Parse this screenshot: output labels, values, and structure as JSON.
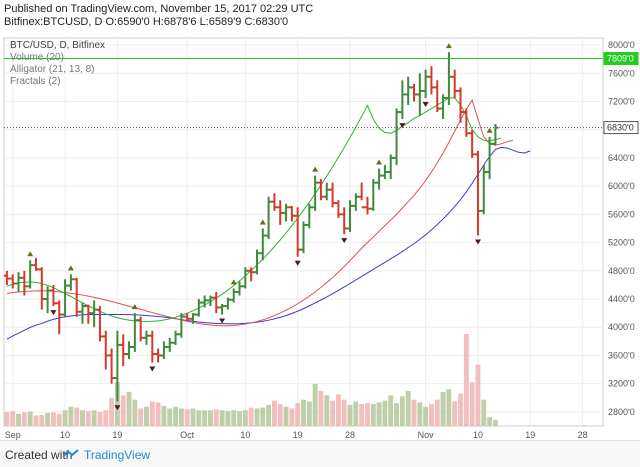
{
  "header": {
    "published": "Published on TradingView.com, November 15, 2017 02:29 UTC",
    "ohlc": "Bitfinex:BTCUSD, D O:6590'0 H:6878'6 L:6589'9 C:6830'0"
  },
  "footer": {
    "created": "Created with",
    "brand": "TradingView"
  },
  "chart_data": {
    "type": "ohlc",
    "legend": [
      "BTC/USD, D, Bitfinex",
      "Volume (20)",
      "Alligator (21, 13, 8)",
      "Fractals (2)"
    ],
    "y_axis": {
      "min": 2600,
      "max": 8100,
      "ticks": [
        2800,
        3200,
        3600,
        4000,
        4400,
        4800,
        5200,
        5600,
        6000,
        6400,
        6800,
        7200,
        7600,
        8000
      ],
      "labels": [
        "2800'0",
        "3200'0",
        "3600'0",
        "4000'0",
        "4400'0",
        "4800'0",
        "5200'0",
        "5600'0",
        "6000'0",
        "6400'0",
        "6800'0",
        "7200'0",
        "7600'0",
        "8000'0"
      ]
    },
    "x_axis": {
      "ticks": [
        1,
        10,
        19,
        31,
        41,
        50,
        59,
        72,
        81,
        90,
        99
      ],
      "labels": [
        "Sep",
        "10",
        "19",
        "Oct",
        "10",
        "19",
        "28",
        "Nov",
        "10",
        "19",
        "28"
      ]
    },
    "price_labels": [
      {
        "value": 7809,
        "label": "7809'0",
        "color": "#22cc22"
      },
      {
        "value": 6830,
        "label": "6830'0",
        "color": "#555555"
      }
    ],
    "bars": [
      [
        4730,
        4800,
        4600,
        4690
      ],
      [
        4690,
        4750,
        4550,
        4620
      ],
      [
        4620,
        4780,
        4500,
        4700
      ],
      [
        4700,
        4800,
        4450,
        4580
      ],
      [
        4580,
        4950,
        4550,
        4880
      ],
      [
        4880,
        4980,
        4800,
        4820
      ],
      [
        4820,
        4850,
        4250,
        4400
      ],
      [
        4400,
        4580,
        4200,
        4520
      ],
      [
        4520,
        4600,
        4300,
        4340
      ],
      [
        4340,
        4380,
        3900,
        4180
      ],
      [
        4180,
        4680,
        4150,
        4590
      ],
      [
        4590,
        4750,
        4520,
        4680
      ],
      [
        4680,
        4700,
        4150,
        4220
      ],
      [
        4220,
        4350,
        4050,
        4300
      ],
      [
        4300,
        4320,
        4050,
        4200
      ],
      [
        4200,
        4380,
        4000,
        4250
      ],
      [
        4250,
        4300,
        3800,
        3870
      ],
      [
        3870,
        3950,
        3400,
        3600
      ],
      [
        3600,
        3700,
        3200,
        3280
      ],
      [
        3280,
        3950,
        2950,
        3750
      ],
      [
        3750,
        3900,
        3450,
        3620
      ],
      [
        3620,
        3800,
        3550,
        3720
      ],
      [
        3720,
        4200,
        3650,
        4100
      ],
      [
        4100,
        4150,
        3800,
        3850
      ],
      [
        3850,
        3950,
        3750,
        3880
      ],
      [
        3880,
        3950,
        3500,
        3620
      ],
      [
        3620,
        3700,
        3500,
        3600
      ],
      [
        3600,
        3800,
        3550,
        3720
      ],
      [
        3720,
        3850,
        3650,
        3780
      ],
      [
        3780,
        3950,
        3750,
        3900
      ],
      [
        3900,
        4200,
        3850,
        4150
      ],
      [
        4150,
        4200,
        4080,
        4120
      ],
      [
        4120,
        4200,
        4050,
        4180
      ],
      [
        4180,
        4400,
        4150,
        4350
      ],
      [
        4350,
        4450,
        4280,
        4380
      ],
      [
        4380,
        4450,
        4300,
        4420
      ],
      [
        4420,
        4500,
        4200,
        4280
      ],
      [
        4280,
        4330,
        4180,
        4300
      ],
      [
        4300,
        4420,
        4250,
        4390
      ],
      [
        4390,
        4550,
        4350,
        4500
      ],
      [
        4500,
        4650,
        4450,
        4580
      ],
      [
        4580,
        4850,
        4550,
        4800
      ],
      [
        4800,
        4850,
        4650,
        4780
      ],
      [
        4780,
        5100,
        4750,
        5050
      ],
      [
        5050,
        5400,
        4950,
        5300
      ],
      [
        5300,
        5850,
        5250,
        5780
      ],
      [
        5780,
        5900,
        5650,
        5700
      ],
      [
        5700,
        5800,
        5450,
        5620
      ],
      [
        5620,
        5750,
        5500,
        5700
      ],
      [
        5700,
        5720,
        5500,
        5580
      ],
      [
        5580,
        5700,
        5000,
        5100
      ],
      [
        5100,
        5500,
        5050,
        5450
      ],
      [
        5450,
        5750,
        5400,
        5700
      ],
      [
        5700,
        6150,
        5650,
        6050
      ],
      [
        6050,
        6100,
        5800,
        5850
      ],
      [
        5850,
        6050,
        5800,
        5950
      ],
      [
        5950,
        6050,
        5700,
        5760
      ],
      [
        5760,
        5800,
        5550,
        5600
      ],
      [
        5600,
        5700,
        5320,
        5400
      ],
      [
        5400,
        5800,
        5350,
        5720
      ],
      [
        5720,
        5900,
        5650,
        5850
      ],
      [
        5850,
        6050,
        5800,
        5700
      ],
      [
        5700,
        5850,
        5600,
        5680
      ],
      [
        5680,
        6100,
        5650,
        6050
      ],
      [
        6050,
        6250,
        5950,
        6150
      ],
      [
        6150,
        6300,
        6100,
        6200
      ],
      [
        6200,
        6450,
        6100,
        6400
      ],
      [
        6400,
        7100,
        6300,
        7050
      ],
      [
        7050,
        7500,
        6950,
        7300
      ],
      [
        7300,
        7550,
        7150,
        7400
      ],
      [
        7400,
        7450,
        7200,
        7300
      ],
      [
        7300,
        7600,
        7000,
        7350
      ],
      [
        7350,
        7650,
        7250,
        7550
      ],
      [
        7550,
        7700,
        7300,
        7400
      ],
      [
        7400,
        7500,
        7050,
        7100
      ],
      [
        7100,
        7300,
        6950,
        7250
      ],
      [
        7250,
        7900,
        7150,
        7550
      ],
      [
        7550,
        7650,
        7250,
        7350
      ],
      [
        7350,
        7400,
        6900,
        7050
      ],
      [
        7050,
        7100,
        6700,
        6750
      ],
      [
        6750,
        6800,
        6400,
        6450
      ],
      [
        6450,
        6500,
        5300,
        5650
      ],
      [
        5650,
        6300,
        5600,
        6200
      ],
      [
        6200,
        6700,
        6100,
        6600
      ],
      [
        6600,
        6880,
        6580,
        6830
      ]
    ],
    "volume": [
      32,
      34,
      28,
      31,
      33,
      24,
      25,
      30,
      31,
      28,
      36,
      44,
      42,
      36,
      34,
      36,
      32,
      36,
      64,
      100,
      70,
      78,
      60,
      40,
      44,
      56,
      54,
      46,
      40,
      44,
      40,
      38,
      40,
      36,
      36,
      36,
      38,
      36,
      34,
      36,
      34,
      36,
      42,
      40,
      42,
      48,
      58,
      50,
      44,
      40,
      52,
      60,
      56,
      96,
      80,
      70,
      58,
      72,
      60,
      48,
      56,
      50,
      52,
      50,
      54,
      58,
      70,
      52,
      68,
      80,
      60,
      54,
      44,
      50,
      60,
      78,
      84,
      56,
      74,
      210,
      100,
      140,
      60,
      20,
      14
    ],
    "alligator": {
      "jaw": [
        3830,
        3876,
        3916,
        3956,
        3998,
        4030,
        4054,
        4085,
        4112,
        4133,
        4148,
        4160,
        4170,
        4177,
        4180,
        4181,
        4181,
        4181,
        4181,
        4181,
        4180,
        4179,
        4176,
        4171,
        4166,
        4160,
        4152,
        4143,
        4133,
        4121,
        4108,
        4096,
        4085,
        4074,
        4065,
        4060,
        4055,
        4052,
        4050,
        4050,
        4052,
        4056,
        4062,
        4072,
        4085,
        4100,
        4118,
        4140,
        4166,
        4195,
        4228,
        4264,
        4303,
        4344,
        4386,
        4430,
        4476,
        4523,
        4571,
        4620,
        4670,
        4720,
        4770,
        4820,
        4870,
        4920,
        4970,
        5020,
        5075,
        5130,
        5185,
        5245,
        5310,
        5380,
        5455,
        5535,
        5620,
        5710,
        5810,
        5920,
        6040,
        6170,
        6300,
        6420,
        6520,
        6550,
        6540,
        6510,
        6480,
        6470,
        6500
      ],
      "teeth": [
        4480,
        4492,
        4500,
        4506,
        4511,
        4515,
        4517,
        4515,
        4510,
        4502,
        4492,
        4482,
        4470,
        4456,
        4441,
        4424,
        4406,
        4386,
        4365,
        4343,
        4320,
        4298,
        4275,
        4253,
        4230,
        4208,
        4186,
        4165,
        4144,
        4123,
        4103,
        4085,
        4068,
        4053,
        4040,
        4031,
        4024,
        4021,
        4021,
        4025,
        4033,
        4045,
        4061,
        4081,
        4105,
        4133,
        4165,
        4201,
        4241,
        4285,
        4333,
        4385,
        4441,
        4501,
        4565,
        4633,
        4705,
        4781,
        4861,
        4945,
        5033,
        5120,
        5200,
        5280,
        5360,
        5440,
        5520,
        5600,
        5690,
        5780,
        5870,
        5970,
        6080,
        6200,
        6330,
        6470,
        6620,
        6780,
        6940,
        7090,
        7220,
        6950,
        6700,
        6600,
        6580,
        6600,
        6630,
        6650
      ],
      "lips": [
        4580,
        4612,
        4630,
        4638,
        4642,
        4636,
        4620,
        4594,
        4560,
        4520,
        4478,
        4434,
        4390,
        4346,
        4303,
        4262,
        4224,
        4190,
        4160,
        4135,
        4115,
        4100,
        4090,
        4084,
        4082,
        4084,
        4091,
        4103,
        4120,
        4142,
        4168,
        4198,
        4233,
        4272,
        4315,
        4362,
        4413,
        4468,
        4527,
        4590,
        4657,
        4728,
        4803,
        4882,
        4965,
        5052,
        5143,
        5238,
        5337,
        5440,
        5547,
        5658,
        5773,
        5892,
        6015,
        6142,
        6273,
        6408,
        6547,
        6690,
        6837,
        6988,
        7143,
        6950,
        6820,
        6760,
        6750,
        6790,
        6850,
        6900,
        6960,
        7000,
        7050,
        7100,
        7150,
        7200,
        7250,
        7250,
        7150,
        7000,
        6800,
        6700,
        6650,
        6640,
        6660,
        6680
      ]
    },
    "fractals_up": [
      4,
      11,
      22,
      39,
      44,
      53,
      64,
      76,
      83
    ],
    "fractals_down": [
      8,
      19,
      25,
      37,
      50,
      58,
      68,
      72,
      81
    ]
  }
}
